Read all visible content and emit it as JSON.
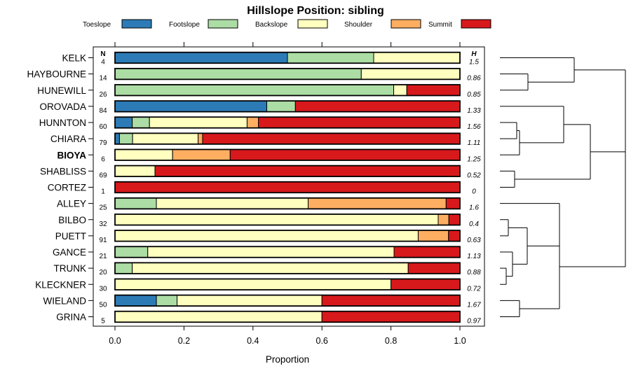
{
  "chart_data": {
    "type": "bar",
    "orientation": "horizontal-stacked",
    "title": "Hillslope Position: sibling",
    "xlabel": "Proportion",
    "xlim": [
      0,
      1
    ],
    "xticks": [
      "0.0",
      "0.2",
      "0.4",
      "0.6",
      "0.8",
      "1.0"
    ],
    "xtick_values": [
      0,
      0.2,
      0.4,
      0.6,
      0.8,
      1.0
    ],
    "n_header": "N",
    "h_header": "H",
    "legend": [
      {
        "name": "Toeslope",
        "color": "#2c7bb6"
      },
      {
        "name": "Footslope",
        "color": "#abdda4"
      },
      {
        "name": "Backslope",
        "color": "#ffffbf"
      },
      {
        "name": "Shoulder",
        "color": "#fdae61"
      },
      {
        "name": "Summit",
        "color": "#d7191c"
      }
    ],
    "rows": [
      {
        "name": "KELK",
        "bold": false,
        "n": "4",
        "h": "1.5",
        "values": [
          0.5,
          0.25,
          0.25,
          0,
          0
        ]
      },
      {
        "name": "HAYBOURNE",
        "bold": false,
        "n": "14",
        "h": "0.86",
        "values": [
          0,
          0.714,
          0.286,
          0,
          0
        ]
      },
      {
        "name": "HUNEWILL",
        "bold": false,
        "n": "26",
        "h": "0.85",
        "values": [
          0,
          0.808,
          0.038,
          0,
          0.154
        ]
      },
      {
        "name": "OROVADA",
        "bold": false,
        "n": "84",
        "h": "1.33",
        "values": [
          0.44,
          0.083,
          0,
          0,
          0.477
        ]
      },
      {
        "name": "HUNNTON",
        "bold": false,
        "n": "60",
        "h": "1.56",
        "values": [
          0.05,
          0.05,
          0.283,
          0.033,
          0.584
        ]
      },
      {
        "name": "CHIARA",
        "bold": false,
        "n": "79",
        "h": "1.11",
        "values": [
          0.013,
          0.038,
          0.19,
          0.013,
          0.746
        ]
      },
      {
        "name": "BIOYA",
        "bold": true,
        "n": "6",
        "h": "1.25",
        "values": [
          0,
          0,
          0.167,
          0.167,
          0.666
        ]
      },
      {
        "name": "SHABLISS",
        "bold": false,
        "n": "69",
        "h": "0.52",
        "values": [
          0,
          0,
          0.116,
          0,
          0.884
        ]
      },
      {
        "name": "CORTEZ",
        "bold": false,
        "n": "1",
        "h": "0",
        "values": [
          0,
          0,
          0,
          0,
          1.0
        ]
      },
      {
        "name": "ALLEY",
        "bold": false,
        "n": "25",
        "h": "1.6",
        "values": [
          0,
          0.12,
          0.44,
          0.4,
          0.04
        ]
      },
      {
        "name": "BILBO",
        "bold": false,
        "n": "32",
        "h": "0.4",
        "values": [
          0,
          0,
          0.937,
          0.031,
          0.032
        ]
      },
      {
        "name": "PUETT",
        "bold": false,
        "n": "91",
        "h": "0.63",
        "values": [
          0,
          0,
          0.879,
          0.088,
          0.033
        ]
      },
      {
        "name": "GANCE",
        "bold": false,
        "n": "21",
        "h": "1.13",
        "values": [
          0,
          0.095,
          0.714,
          0,
          0.191
        ]
      },
      {
        "name": "TRUNK",
        "bold": false,
        "n": "20",
        "h": "0.88",
        "values": [
          0,
          0.05,
          0.8,
          0,
          0.15
        ]
      },
      {
        "name": "KLECKNER",
        "bold": false,
        "n": "30",
        "h": "0.72",
        "values": [
          0,
          0,
          0.8,
          0,
          0.2
        ]
      },
      {
        "name": "WIELAND",
        "bold": false,
        "n": "50",
        "h": "1.67",
        "values": [
          0.12,
          0.06,
          0.42,
          0,
          0.4
        ]
      },
      {
        "name": "GRINA",
        "bold": false,
        "n": "5",
        "h": "0.97",
        "values": [
          0,
          0,
          0.6,
          0,
          0.4
        ]
      }
    ]
  }
}
